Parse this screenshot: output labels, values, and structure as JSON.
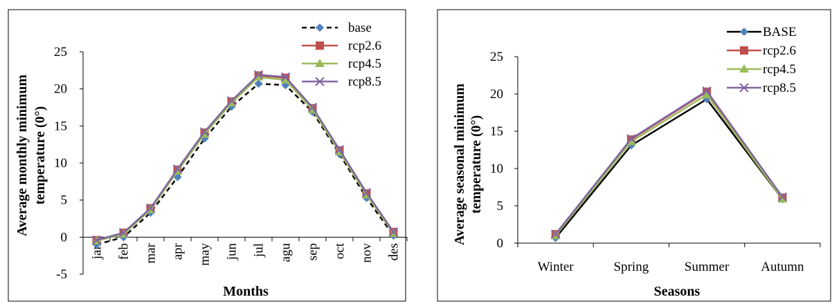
{
  "colors": {
    "base": "#000000",
    "rcp26": "#C0504D",
    "rcp45": "#9BBB59",
    "rcp85": "#8064A2",
    "marker_base": "#4F81BD"
  },
  "chart_data": [
    {
      "type": "line",
      "title": "",
      "xlabel": "Months",
      "ylabel": "Average monthly minimum temperature (0°)",
      "ylabel_lines": [
        "Average monthly minimum",
        "temperature (0°)"
      ],
      "ylim": [
        -5,
        25
      ],
      "yticks": [
        "-5",
        "0",
        "5",
        "10",
        "15",
        "20",
        "25"
      ],
      "ytick_values": [
        -5,
        0,
        5,
        10,
        15,
        20,
        25
      ],
      "grid": false,
      "legend_position": "top-right",
      "categories": [
        "jan",
        "feb",
        "mar",
        "apr",
        "may",
        "jun",
        "jul",
        "agu",
        "sep",
        "oct",
        "nov",
        "des"
      ],
      "series": [
        {
          "name": "base",
          "key": "base",
          "dash": true,
          "marker": "diamond",
          "values": [
            -1.0,
            0.0,
            3.3,
            8.1,
            13.3,
            17.6,
            20.7,
            20.5,
            16.9,
            11.2,
            5.3,
            0.2
          ]
        },
        {
          "name": "rcp2.6",
          "key": "rcp26",
          "dash": false,
          "marker": "square",
          "values": [
            -0.4,
            0.6,
            3.9,
            9.1,
            14.1,
            18.3,
            21.8,
            21.5,
            17.4,
            11.7,
            5.9,
            0.7
          ]
        },
        {
          "name": "rcp4.5",
          "key": "rcp45",
          "dash": false,
          "marker": "triangle",
          "values": [
            -0.5,
            0.4,
            3.7,
            8.9,
            13.9,
            18.1,
            21.6,
            21.2,
            17.2,
            11.5,
            5.7,
            0.5
          ]
        },
        {
          "name": "rcp8.5",
          "key": "rcp85",
          "dash": false,
          "marker": "x",
          "values": [
            -0.4,
            0.6,
            3.9,
            9.2,
            14.2,
            18.4,
            21.9,
            21.6,
            17.5,
            11.8,
            6.0,
            0.7
          ]
        }
      ]
    },
    {
      "type": "line",
      "title": "",
      "xlabel": "Seasons",
      "ylabel": "Average seasonal minimum temperature (0°)",
      "ylabel_lines": [
        "Average seasonal minimum",
        "temperature (0°)"
      ],
      "ylim": [
        0,
        25
      ],
      "yticks": [
        "0",
        "5",
        "10",
        "15",
        "20",
        "25"
      ],
      "ytick_values": [
        0,
        5,
        10,
        15,
        20,
        25
      ],
      "grid": false,
      "legend_position": "top-right",
      "categories": [
        "Winter",
        "Spring",
        "Summer",
        "Autumn"
      ],
      "series": [
        {
          "name": "BASE",
          "key": "base",
          "dash": false,
          "marker": "diamond",
          "values": [
            0.7,
            13.1,
            19.3,
            5.9
          ]
        },
        {
          "name": "rcp2.6",
          "key": "rcp26",
          "dash": false,
          "marker": "square",
          "values": [
            1.2,
            13.9,
            20.3,
            6.1
          ]
        },
        {
          "name": "rcp4.5",
          "key": "rcp45",
          "dash": false,
          "marker": "triangle",
          "values": [
            1.0,
            13.6,
            19.9,
            5.9
          ]
        },
        {
          "name": "rcp8.5",
          "key": "rcp85",
          "dash": false,
          "marker": "x",
          "values": [
            1.2,
            14.0,
            20.4,
            6.2
          ]
        }
      ]
    }
  ]
}
